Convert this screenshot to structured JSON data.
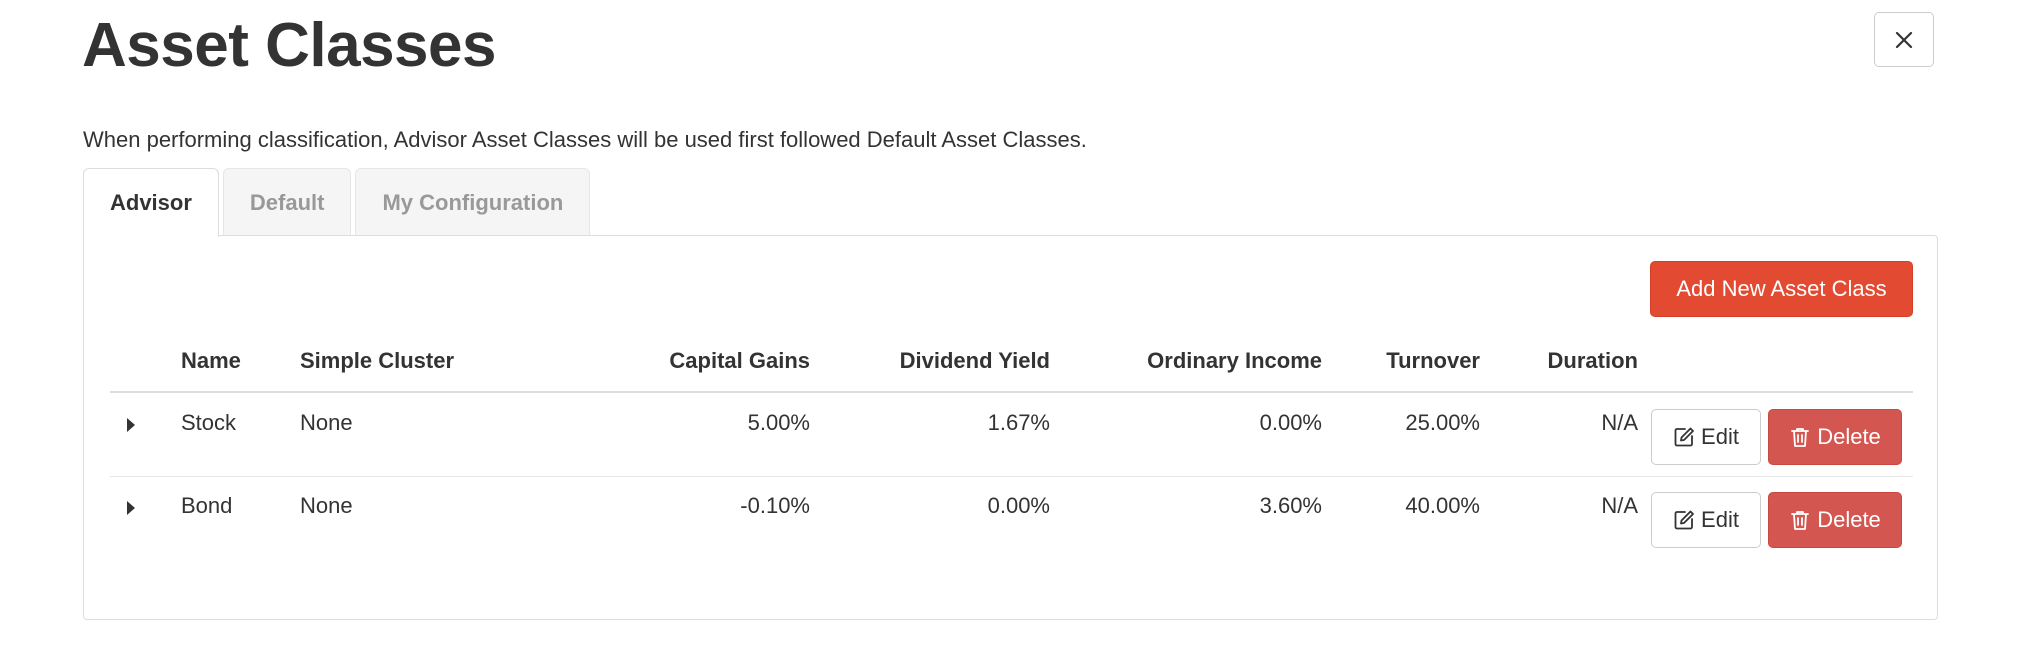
{
  "dialog": {
    "title": "Asset Classes",
    "close_icon": "close-icon",
    "description": "When performing classification, Advisor Asset Classes will be used first followed Default Asset Classes."
  },
  "tabs": [
    {
      "label": "Advisor",
      "active": true
    },
    {
      "label": "Default",
      "active": false
    },
    {
      "label": "My Configuration",
      "active": false
    }
  ],
  "toolbar": {
    "add_label": "Add New Asset Class",
    "add_color": "#e24a32"
  },
  "table": {
    "columns": {
      "name": "Name",
      "cluster": "Simple Cluster",
      "capital_gains": "Capital Gains",
      "dividend_yield": "Dividend Yield",
      "ordinary_income": "Ordinary Income",
      "turnover": "Turnover",
      "duration": "Duration"
    },
    "rows": [
      {
        "name": "Stock",
        "cluster": "None",
        "capital_gains": "5.00%",
        "dividend_yield": "1.67%",
        "ordinary_income": "0.00%",
        "turnover": "25.00%",
        "duration": "N/A",
        "edit_label": "Edit",
        "delete_label": "Delete"
      },
      {
        "name": "Bond",
        "cluster": "None",
        "capital_gains": "-0.10%",
        "dividend_yield": "0.00%",
        "ordinary_income": "3.60%",
        "turnover": "40.00%",
        "duration": "N/A",
        "edit_label": "Edit",
        "delete_label": "Delete"
      }
    ],
    "row_icons": {
      "expand": "caret-right-icon",
      "edit": "edit-icon",
      "delete": "trash-icon"
    },
    "delete_color": "#d35750"
  }
}
